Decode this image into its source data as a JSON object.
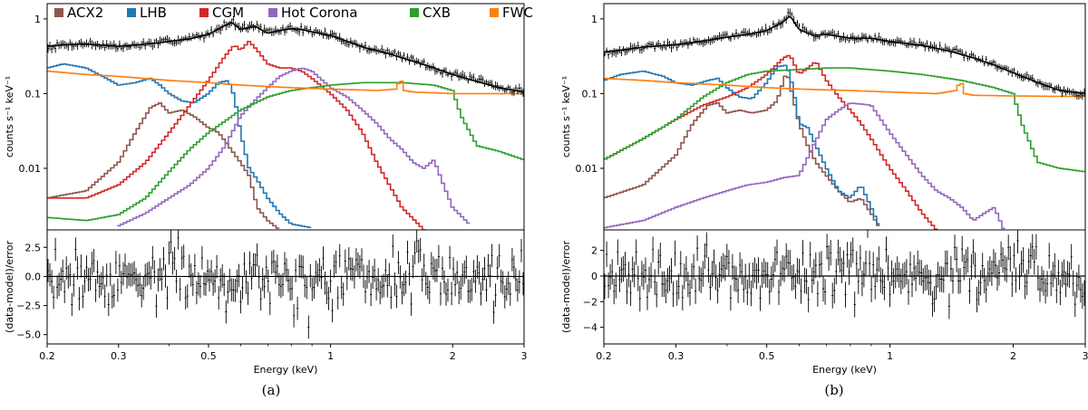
{
  "figure": {
    "captions": [
      "(a)",
      "(b)"
    ]
  },
  "legend": [
    {
      "label": "ACX2",
      "color": "#8c564b"
    },
    {
      "label": "LHB",
      "color": "#1f77b4"
    },
    {
      "label": "CGM",
      "color": "#d62728"
    },
    {
      "label": "Hot Corona",
      "color": "#9467bd"
    },
    {
      "label": "CXB",
      "color": "#2ca02c"
    },
    {
      "label": "FWC",
      "color": "#ff7f0e"
    }
  ],
  "chart_data": [
    {
      "type": "line",
      "panel": "a",
      "xlabel": "Energy (keV)",
      "xscale": "log",
      "xlim": [
        0.2,
        3
      ],
      "xticks": [
        {
          "v": 0.2,
          "label": "0.2"
        },
        {
          "v": 0.3,
          "label": "0.3"
        },
        {
          "v": 0.5,
          "label": "0.5"
        },
        {
          "v": 1,
          "label": "1"
        },
        {
          "v": 2,
          "label": "2"
        },
        {
          "v": 3,
          "label": "3"
        }
      ],
      "top": {
        "ylabel": "counts s⁻¹ keV⁻¹",
        "yscale": "log",
        "ylim": [
          0.0015,
          1.6
        ],
        "yticks": [
          {
            "v": 0.01,
            "label": "0.01"
          },
          {
            "v": 0.1,
            "label": "0.1"
          },
          {
            "v": 1,
            "label": "1"
          }
        ],
        "data": {
          "x": [
            0.2,
            0.22,
            0.25,
            0.28,
            0.3,
            0.32,
            0.35,
            0.38,
            0.4,
            0.45,
            0.5,
            0.55,
            0.57,
            0.6,
            0.65,
            0.7,
            0.75,
            0.8,
            0.85,
            0.9,
            1.0,
            1.1,
            1.2,
            1.4,
            1.6,
            1.8,
            2.0,
            2.3,
            2.6,
            3.0
          ],
          "y": [
            0.42,
            0.45,
            0.47,
            0.44,
            0.42,
            0.43,
            0.46,
            0.48,
            0.5,
            0.55,
            0.62,
            0.85,
            0.95,
            0.75,
            0.82,
            0.65,
            0.7,
            0.75,
            0.72,
            0.68,
            0.6,
            0.5,
            0.42,
            0.35,
            0.28,
            0.22,
            0.18,
            0.15,
            0.12,
            0.11
          ]
        },
        "model": {
          "x": [
            0.2,
            0.22,
            0.25,
            0.28,
            0.3,
            0.32,
            0.35,
            0.38,
            0.4,
            0.45,
            0.5,
            0.55,
            0.57,
            0.6,
            0.65,
            0.7,
            0.75,
            0.8,
            0.85,
            0.9,
            1.0,
            1.1,
            1.2,
            1.4,
            1.6,
            1.8,
            2.0,
            2.3,
            2.6,
            3.0
          ],
          "y": [
            0.43,
            0.45,
            0.46,
            0.44,
            0.43,
            0.44,
            0.46,
            0.48,
            0.5,
            0.54,
            0.62,
            0.82,
            0.9,
            0.72,
            0.8,
            0.64,
            0.7,
            0.74,
            0.72,
            0.67,
            0.6,
            0.5,
            0.42,
            0.34,
            0.27,
            0.22,
            0.18,
            0.145,
            0.12,
            0.105
          ]
        },
        "series": [
          {
            "name": "ACX2",
            "x": [
              0.2,
              0.25,
              0.3,
              0.33,
              0.36,
              0.38,
              0.4,
              0.43,
              0.46,
              0.5,
              0.53,
              0.56,
              0.6,
              0.63,
              0.66,
              0.7,
              0.75
            ],
            "y": [
              0.004,
              0.005,
              0.012,
              0.03,
              0.065,
              0.075,
              0.055,
              0.06,
              0.05,
              0.035,
              0.03,
              0.02,
              0.012,
              0.008,
              0.003,
              0.002,
              0.0015
            ]
          },
          {
            "name": "LHB",
            "x": [
              0.2,
              0.22,
              0.25,
              0.28,
              0.3,
              0.33,
              0.36,
              0.38,
              0.4,
              0.43,
              0.46,
              0.5,
              0.53,
              0.56,
              0.58,
              0.6,
              0.63,
              0.66,
              0.7,
              0.75,
              0.8,
              0.9
            ],
            "y": [
              0.22,
              0.25,
              0.22,
              0.16,
              0.13,
              0.14,
              0.16,
              0.13,
              0.1,
              0.08,
              0.075,
              0.1,
              0.14,
              0.15,
              0.09,
              0.03,
              0.01,
              0.007,
              0.004,
              0.0025,
              0.0018,
              0.0016
            ]
          },
          {
            "name": "CGM",
            "x": [
              0.2,
              0.25,
              0.3,
              0.35,
              0.4,
              0.45,
              0.5,
              0.55,
              0.58,
              0.6,
              0.63,
              0.66,
              0.7,
              0.75,
              0.8,
              0.85,
              0.9,
              1.0,
              1.1,
              1.2,
              1.3,
              1.5,
              1.7
            ],
            "y": [
              0.004,
              0.004,
              0.006,
              0.012,
              0.03,
              0.07,
              0.15,
              0.32,
              0.45,
              0.38,
              0.5,
              0.38,
              0.25,
              0.22,
              0.22,
              0.2,
              0.16,
              0.1,
              0.06,
              0.03,
              0.012,
              0.003,
              0.0015
            ]
          },
          {
            "name": "Hot Corona",
            "x": [
              0.3,
              0.35,
              0.4,
              0.45,
              0.5,
              0.55,
              0.6,
              0.65,
              0.7,
              0.75,
              0.8,
              0.85,
              0.9,
              1.0,
              1.1,
              1.2,
              1.3,
              1.4,
              1.5,
              1.6,
              1.7,
              1.8,
              1.9,
              2.0,
              2.2
            ],
            "y": [
              0.0017,
              0.0025,
              0.004,
              0.006,
              0.01,
              0.02,
              0.05,
              0.08,
              0.12,
              0.17,
              0.2,
              0.22,
              0.2,
              0.12,
              0.09,
              0.06,
              0.04,
              0.025,
              0.018,
              0.012,
              0.01,
              0.013,
              0.006,
              0.003,
              0.0018
            ]
          },
          {
            "name": "CXB",
            "x": [
              0.2,
              0.25,
              0.3,
              0.35,
              0.4,
              0.45,
              0.5,
              0.6,
              0.7,
              0.8,
              1.0,
              1.2,
              1.5,
              1.8,
              2.0,
              2.1,
              2.3,
              2.6,
              3.0
            ],
            "y": [
              0.0022,
              0.002,
              0.0024,
              0.004,
              0.009,
              0.018,
              0.03,
              0.06,
              0.09,
              0.11,
              0.13,
              0.14,
              0.14,
              0.13,
              0.11,
              0.05,
              0.02,
              0.017,
              0.013
            ]
          },
          {
            "name": "FWC",
            "x": [
              0.2,
              0.25,
              0.3,
              0.4,
              0.5,
              0.6,
              0.8,
              1.0,
              1.3,
              1.45,
              1.49,
              1.52,
              1.6,
              2.0,
              2.5,
              3.0
            ],
            "y": [
              0.2,
              0.18,
              0.17,
              0.15,
              0.14,
              0.13,
              0.12,
              0.115,
              0.11,
              0.115,
              0.16,
              0.11,
              0.105,
              0.1,
              0.1,
              0.1
            ]
          }
        ]
      },
      "bottom": {
        "ylabel": "(data-model)/error",
        "ylim": [
          -5.8,
          4.0
        ],
        "yticks": [
          {
            "v": 2.5,
            "label": "2.5"
          },
          {
            "v": 0,
            "label": "0.0"
          },
          {
            "v": -2.5,
            "label": "−2.5"
          },
          {
            "v": -5,
            "label": "−5.0"
          }
        ],
        "resid_scale": 1.2,
        "seed": 7
      }
    },
    {
      "type": "line",
      "panel": "b",
      "xlabel": "Energy (keV)",
      "xscale": "log",
      "xlim": [
        0.2,
        3
      ],
      "xticks": [
        {
          "v": 0.2,
          "label": "0.2"
        },
        {
          "v": 0.3,
          "label": "0.3"
        },
        {
          "v": 0.5,
          "label": "0.5"
        },
        {
          "v": 1,
          "label": "1"
        },
        {
          "v": 2,
          "label": "2"
        },
        {
          "v": 3,
          "label": "3"
        }
      ],
      "top": {
        "ylabel": "counts s⁻¹ keV⁻¹",
        "yscale": "log",
        "ylim": [
          0.0015,
          1.6
        ],
        "yticks": [
          {
            "v": 0.01,
            "label": "0.01"
          },
          {
            "v": 0.1,
            "label": "0.1"
          },
          {
            "v": 1,
            "label": "1"
          }
        ],
        "data": {
          "x": [
            0.2,
            0.22,
            0.25,
            0.28,
            0.3,
            0.33,
            0.36,
            0.4,
            0.45,
            0.5,
            0.55,
            0.57,
            0.6,
            0.65,
            0.7,
            0.8,
            0.9,
            1.0,
            1.2,
            1.4,
            1.6,
            1.8,
            2.0,
            2.3,
            2.6,
            3.0
          ],
          "y": [
            0.35,
            0.38,
            0.42,
            0.44,
            0.45,
            0.48,
            0.52,
            0.58,
            0.62,
            0.7,
            0.95,
            1.2,
            0.75,
            0.6,
            0.62,
            0.55,
            0.55,
            0.5,
            0.45,
            0.38,
            0.3,
            0.25,
            0.2,
            0.14,
            0.11,
            0.1
          ]
        },
        "model": {
          "x": [
            0.2,
            0.22,
            0.25,
            0.28,
            0.3,
            0.33,
            0.36,
            0.4,
            0.45,
            0.5,
            0.55,
            0.57,
            0.6,
            0.65,
            0.7,
            0.8,
            0.9,
            1.0,
            1.2,
            1.4,
            1.6,
            1.8,
            2.0,
            2.3,
            2.6,
            3.0
          ],
          "y": [
            0.36,
            0.38,
            0.42,
            0.44,
            0.45,
            0.48,
            0.52,
            0.57,
            0.62,
            0.7,
            0.92,
            1.1,
            0.72,
            0.6,
            0.62,
            0.55,
            0.55,
            0.5,
            0.44,
            0.37,
            0.3,
            0.24,
            0.19,
            0.14,
            0.11,
            0.1
          ]
        },
        "series": [
          {
            "name": "ACX2",
            "x": [
              0.2,
              0.25,
              0.3,
              0.33,
              0.36,
              0.38,
              0.4,
              0.43,
              0.46,
              0.5,
              0.53,
              0.56,
              0.6,
              0.63,
              0.66,
              0.7,
              0.75,
              0.8,
              0.85,
              0.9,
              0.95
            ],
            "y": [
              0.004,
              0.006,
              0.015,
              0.04,
              0.07,
              0.075,
              0.055,
              0.06,
              0.055,
              0.06,
              0.08,
              0.2,
              0.04,
              0.02,
              0.012,
              0.008,
              0.005,
              0.0035,
              0.004,
              0.0025,
              0.0015
            ]
          },
          {
            "name": "LHB",
            "x": [
              0.2,
              0.22,
              0.25,
              0.28,
              0.3,
              0.33,
              0.36,
              0.38,
              0.4,
              0.43,
              0.46,
              0.5,
              0.53,
              0.56,
              0.58,
              0.6,
              0.63,
              0.66,
              0.7,
              0.75,
              0.8,
              0.85,
              0.9,
              0.95
            ],
            "y": [
              0.15,
              0.18,
              0.2,
              0.17,
              0.14,
              0.13,
              0.15,
              0.16,
              0.12,
              0.09,
              0.085,
              0.14,
              0.23,
              0.24,
              0.12,
              0.04,
              0.035,
              0.02,
              0.01,
              0.005,
              0.004,
              0.006,
              0.003,
              0.0015
            ]
          },
          {
            "name": "CGM",
            "x": [
              0.2,
              0.25,
              0.3,
              0.35,
              0.4,
              0.45,
              0.5,
              0.55,
              0.57,
              0.6,
              0.63,
              0.66,
              0.7,
              0.75,
              0.8,
              0.85,
              0.9,
              1.0,
              1.1,
              1.2,
              1.3
            ],
            "y": [
              0.013,
              0.025,
              0.045,
              0.07,
              0.09,
              0.12,
              0.18,
              0.3,
              0.33,
              0.18,
              0.22,
              0.27,
              0.15,
              0.09,
              0.06,
              0.04,
              0.025,
              0.01,
              0.005,
              0.0025,
              0.0015
            ]
          },
          {
            "name": "Hot Corona",
            "x": [
              0.2,
              0.25,
              0.3,
              0.35,
              0.4,
              0.45,
              0.5,
              0.55,
              0.6,
              0.65,
              0.7,
              0.75,
              0.8,
              0.9,
              1.0,
              1.1,
              1.2,
              1.3,
              1.4,
              1.5,
              1.6,
              1.7,
              1.8,
              1.9
            ],
            "y": [
              0.0016,
              0.002,
              0.003,
              0.004,
              0.005,
              0.006,
              0.0065,
              0.0075,
              0.008,
              0.02,
              0.045,
              0.06,
              0.075,
              0.07,
              0.03,
              0.015,
              0.008,
              0.005,
              0.004,
              0.003,
              0.002,
              0.0025,
              0.003,
              0.0015
            ]
          },
          {
            "name": "CXB",
            "x": [
              0.2,
              0.25,
              0.3,
              0.35,
              0.4,
              0.45,
              0.5,
              0.6,
              0.7,
              0.8,
              1.0,
              1.2,
              1.5,
              1.8,
              2.0,
              2.1,
              2.3,
              2.6,
              3.0
            ],
            "y": [
              0.013,
              0.025,
              0.045,
              0.09,
              0.14,
              0.18,
              0.2,
              0.21,
              0.22,
              0.22,
              0.2,
              0.18,
              0.15,
              0.12,
              0.1,
              0.04,
              0.012,
              0.01,
              0.009
            ]
          },
          {
            "name": "FWC",
            "x": [
              0.2,
              0.25,
              0.3,
              0.4,
              0.5,
              0.6,
              0.8,
              1.0,
              1.3,
              1.45,
              1.49,
              1.52,
              1.6,
              2.0,
              2.5,
              3.0
            ],
            "y": [
              0.16,
              0.15,
              0.14,
              0.13,
              0.12,
              0.115,
              0.11,
              0.105,
              0.1,
              0.11,
              0.15,
              0.1,
              0.095,
              0.093,
              0.092,
              0.092
            ]
          }
        ]
      },
      "bottom": {
        "ylabel": "(data-model)/error",
        "ylim": [
          -5.3,
          3.6
        ],
        "yticks": [
          {
            "v": 2,
            "label": "2"
          },
          {
            "v": 0,
            "label": "0"
          },
          {
            "v": -2,
            "label": "−2"
          },
          {
            "v": -4,
            "label": "−4"
          }
        ],
        "resid_scale": 1.1,
        "seed": 19
      }
    }
  ]
}
